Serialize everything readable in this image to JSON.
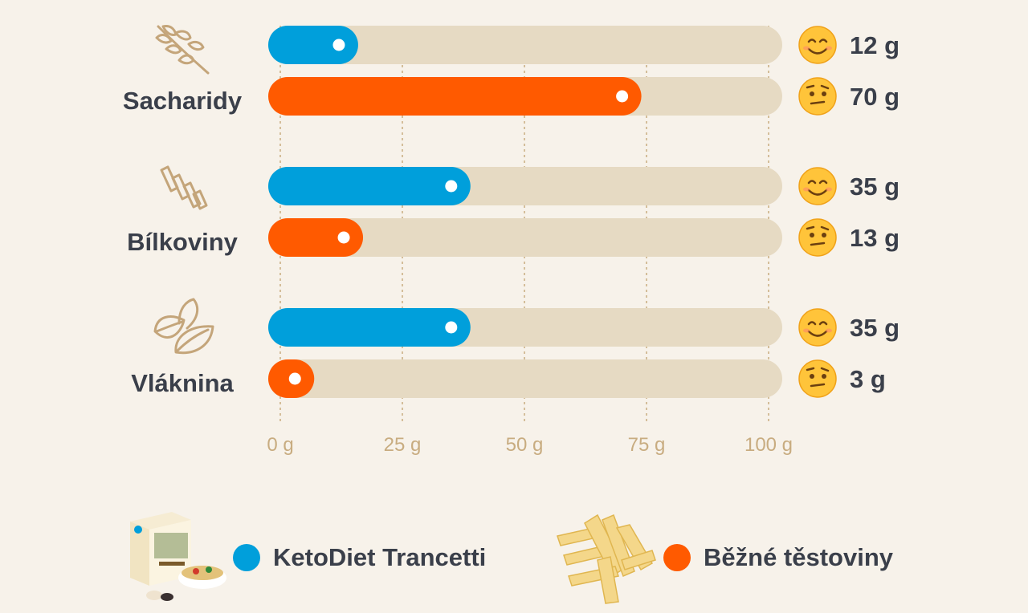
{
  "chart_data": {
    "type": "bar",
    "orientation": "horizontal",
    "categories": [
      "Sacharidy",
      "Bílkoviny",
      "Vláknina"
    ],
    "category_icons": [
      "wheat-icon",
      "pasta-icon",
      "leaves-icon"
    ],
    "series": [
      {
        "name": "KetoDiet Trancetti",
        "color": "#009fdb",
        "values": [
          12,
          35,
          35
        ],
        "labels": [
          "12 g",
          "35 g",
          "35 g"
        ]
      },
      {
        "name": "Běžné těstoviny",
        "color": "#ff5a00",
        "values": [
          70,
          13,
          3
        ],
        "labels": [
          "70 g",
          "13 g",
          "3 g"
        ]
      }
    ],
    "xlim": [
      0,
      100
    ],
    "ticks": [
      0,
      25,
      50,
      75,
      100
    ],
    "tick_labels": [
      "0 g",
      "25 g",
      "50 g",
      "75 g",
      "100 g"
    ],
    "grid": true,
    "legend_position": "bottom"
  },
  "legend": {
    "items": [
      {
        "label": "KetoDiet Trancetti",
        "color": "#009fdb",
        "image": "keto-product-box-image"
      },
      {
        "label": "Běžné těstoviny",
        "color": "#ff5a00",
        "image": "penne-pasta-image"
      }
    ]
  },
  "colors": {
    "background": "#f7f2ea",
    "track": "#e6dac3",
    "grid": "#c8ac80",
    "text": "#3a3f4a",
    "icon": "#c4a57a"
  }
}
